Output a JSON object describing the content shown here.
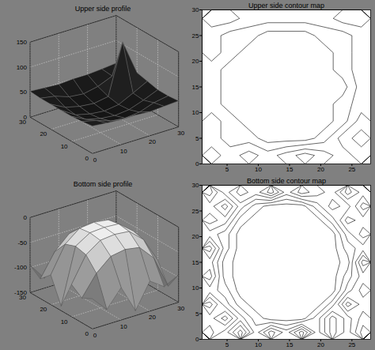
{
  "chart_data": [
    {
      "type": "surface",
      "title": "Upper side profile",
      "x": [
        0,
        5,
        10,
        15,
        20,
        25,
        30
      ],
      "y": [
        0,
        5,
        10,
        15,
        20,
        25,
        30
      ],
      "z": [
        [
          55,
          52,
          50,
          50,
          48,
          50,
          52
        ],
        [
          52,
          45,
          35,
          32,
          35,
          45,
          50
        ],
        [
          50,
          35,
          28,
          25,
          28,
          38,
          50
        ],
        [
          50,
          32,
          25,
          22,
          26,
          40,
          55
        ],
        [
          50,
          35,
          28,
          25,
          30,
          130,
          60
        ],
        [
          50,
          45,
          35,
          32,
          38,
          50,
          52
        ],
        [
          52,
          50,
          48,
          50,
          50,
          52,
          55
        ]
      ],
      "xlim": [
        0,
        30
      ],
      "ylim": [
        0,
        30
      ],
      "zlim": [
        0,
        150
      ],
      "xticks": [
        0,
        10,
        20,
        30
      ],
      "yticks": [
        0,
        10,
        20,
        30
      ],
      "zticks": [
        0,
        50,
        100,
        150
      ],
      "grid": true,
      "colors": [
        "#0d0d0d",
        "#3c3c3c"
      ],
      "color": "#6e6e6e"
    },
    {
      "type": "contour",
      "title": "Upper side contour map",
      "z": [
        [
          3,
          2,
          3,
          2,
          3,
          4,
          3,
          2,
          3
        ],
        [
          2,
          1,
          1,
          0,
          0,
          0,
          1,
          3,
          4
        ],
        [
          2,
          1,
          0,
          0,
          0,
          0,
          0,
          1,
          3
        ],
        [
          1,
          0,
          0,
          0,
          0,
          0,
          0,
          1,
          2
        ],
        [
          1,
          0,
          0,
          0,
          0,
          0,
          0,
          0,
          2
        ],
        [
          1,
          0,
          0,
          0,
          0,
          0,
          0,
          1,
          2
        ],
        [
          2,
          1,
          0,
          0,
          0,
          0,
          0,
          1,
          2
        ],
        [
          2,
          1,
          1,
          0,
          0,
          0,
          1,
          1,
          2
        ],
        [
          3,
          3,
          2,
          2,
          2,
          2,
          2,
          3,
          3
        ]
      ],
      "levels": [
        0.5,
        1.5,
        2.5,
        3.5
      ],
      "xlim": [
        1,
        28
      ],
      "ylim": [
        0,
        30
      ],
      "xticks": [
        5,
        10,
        15,
        20,
        25
      ],
      "yticks": [
        0,
        5,
        10,
        15,
        20,
        25,
        30
      ],
      "color": "#000000"
    },
    {
      "type": "surface",
      "title": "Bottom side profile",
      "x": [
        0,
        5,
        10,
        15,
        20,
        25,
        30
      ],
      "y": [
        0,
        5,
        10,
        15,
        20,
        25,
        30
      ],
      "z": [
        [
          -90,
          -120,
          -85,
          -140,
          -90,
          -110,
          -95
        ],
        [
          -100,
          -60,
          -35,
          -30,
          -35,
          -65,
          -130
        ],
        [
          -85,
          -35,
          -15,
          -12,
          -15,
          -40,
          -90
        ],
        [
          -140,
          -30,
          -12,
          -10,
          -12,
          -35,
          -100
        ],
        [
          -90,
          -38,
          -15,
          -12,
          -16,
          -40,
          -145
        ],
        [
          -110,
          -65,
          -38,
          -32,
          -40,
          -70,
          -90
        ],
        [
          -95,
          -130,
          -90,
          -105,
          -85,
          -120,
          -100
        ]
      ],
      "xlim": [
        0,
        30
      ],
      "ylim": [
        0,
        30
      ],
      "zlim": [
        -150,
        0
      ],
      "xticks": [
        0,
        10,
        20,
        30
      ],
      "yticks": [
        0,
        10,
        20,
        30
      ],
      "zticks": [
        0,
        -50,
        -100,
        -150
      ],
      "grid": true,
      "colors": [
        "#2a2a2a",
        "#ffffff"
      ],
      "color": "#555555"
    },
    {
      "type": "contour",
      "title": "Bottom side contour map",
      "z": [
        [
          5,
          3,
          6,
          2,
          5,
          3,
          6,
          2,
          5,
          3,
          6
        ],
        [
          4,
          6,
          3,
          1,
          0,
          0,
          0,
          2,
          5,
          3,
          5
        ],
        [
          6,
          3,
          1,
          0,
          0,
          0,
          0,
          0,
          2,
          6,
          4
        ],
        [
          3,
          2,
          0,
          0,
          0,
          0,
          0,
          0,
          0,
          3,
          5
        ],
        [
          5,
          1,
          0,
          0,
          0,
          0,
          0,
          0,
          0,
          2,
          4
        ],
        [
          4,
          1,
          0,
          0,
          0,
          0,
          0,
          0,
          0,
          1,
          6
        ],
        [
          6,
          2,
          0,
          0,
          0,
          0,
          0,
          0,
          0,
          2,
          3
        ],
        [
          3,
          2,
          0,
          0,
          0,
          0,
          0,
          0,
          0,
          3,
          5
        ],
        [
          5,
          4,
          1,
          0,
          0,
          0,
          0,
          0,
          2,
          5,
          4
        ],
        [
          4,
          6,
          3,
          1,
          0,
          0,
          0,
          2,
          4,
          3,
          6
        ],
        [
          6,
          3,
          5,
          4,
          6,
          3,
          5,
          4,
          3,
          6,
          4
        ]
      ],
      "levels": [
        0.5,
        1.5,
        2.5,
        3.5,
        4.5,
        5.5
      ],
      "xlim": [
        1,
        28
      ],
      "ylim": [
        0,
        30
      ],
      "xticks": [
        5,
        10,
        15,
        20,
        25
      ],
      "yticks": [
        0,
        5,
        10,
        15,
        20,
        25,
        30
      ],
      "color": "#000000"
    }
  ]
}
